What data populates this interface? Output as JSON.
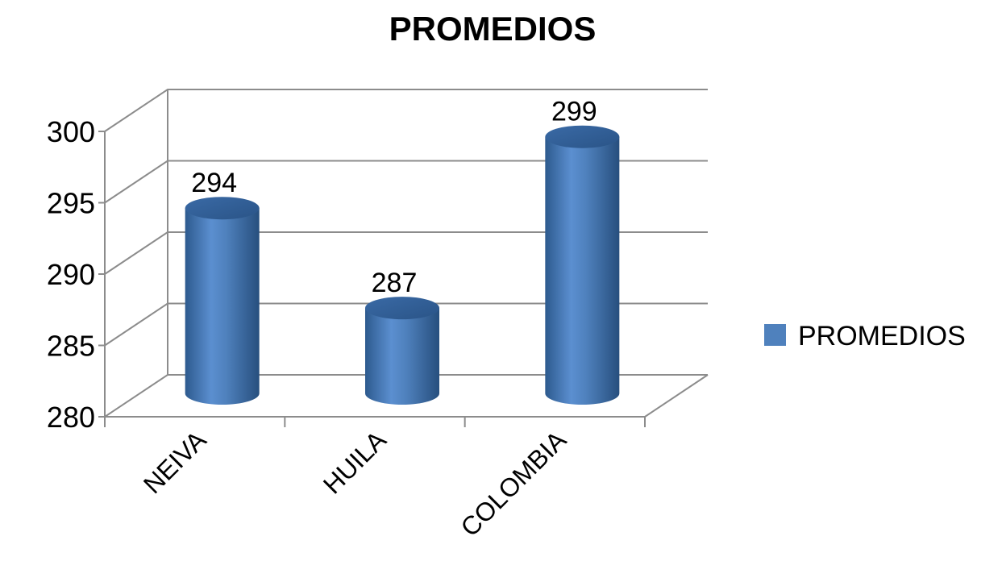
{
  "chart_data": {
    "type": "bar",
    "style": "3d-cylinder",
    "title": "PROMEDIOS",
    "categories": [
      "NEIVA",
      "HUILA",
      "COLOMBIA"
    ],
    "series": [
      {
        "name": "PROMEDIOS",
        "values": [
          294,
          287,
          299
        ],
        "color": "#4f81bd"
      }
    ],
    "data_labels": [
      "294",
      "287",
      "299"
    ],
    "ylim": [
      280,
      300
    ],
    "y_ticks": [
      280,
      285,
      290,
      295,
      300
    ],
    "y_tick_labels": [
      "280",
      "285",
      "290",
      "295",
      "300"
    ],
    "grid": true,
    "legend": {
      "position": "right",
      "entries": [
        "PROMEDIOS"
      ]
    },
    "xlabel": "",
    "ylabel": ""
  }
}
